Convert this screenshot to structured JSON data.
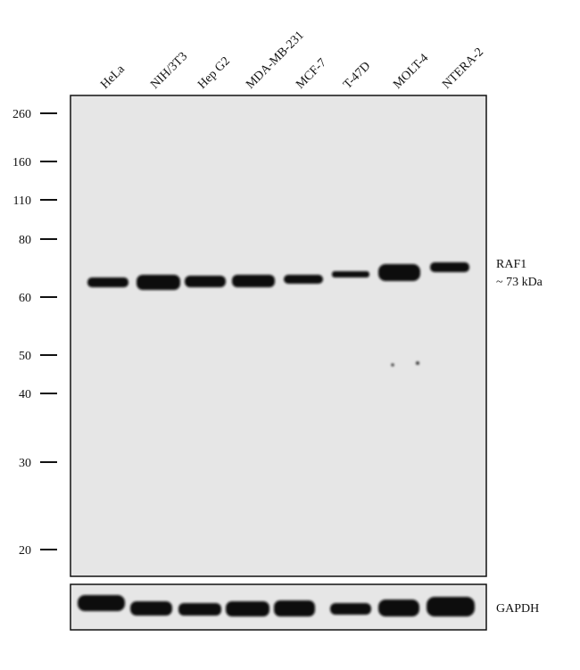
{
  "lanes": [
    "HeLa",
    "NIH/3T3",
    "Hep G2",
    "MDA-MB-231",
    "MCF-7",
    "T-47D",
    "MOLT-4",
    "NTERA-2"
  ],
  "markers": [
    "260",
    "160",
    "110",
    "80",
    "60",
    "50",
    "40",
    "30",
    "20"
  ],
  "band_label": {
    "protein": "RAF1",
    "size": "~ 73 kDa"
  },
  "loading_control": "GAPDH"
}
